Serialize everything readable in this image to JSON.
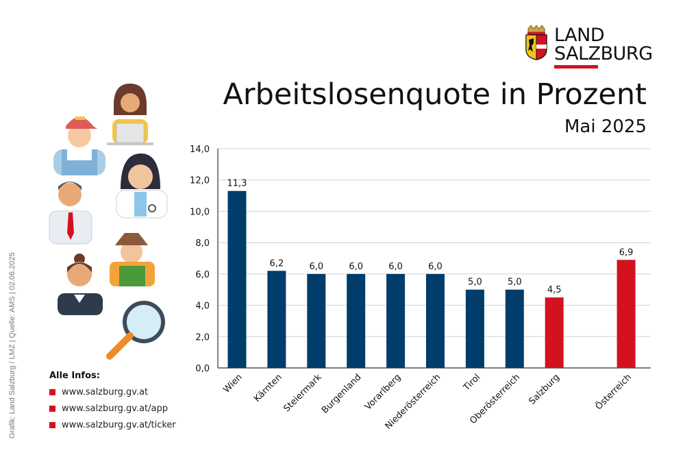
{
  "logo": {
    "line1": "LAND",
    "line2": "SALZBURG"
  },
  "credit": "Grafik: Land Salzburg / LMZ  |  Quelle: AMS  |  02.06.2025",
  "info": {
    "heading": "Alle Infos:",
    "links": [
      "www.salzburg.gv.at",
      "www.salzburg.gv.at/app",
      "www.salzburg.gv.at/ticker"
    ]
  },
  "colors": {
    "primary": "#003d6b",
    "accent": "#d3121f",
    "grid": "#d0d0d0"
  },
  "chart_data": {
    "type": "bar",
    "title": "Arbeitslosenquote in Prozent",
    "subtitle": "Mai 2025",
    "xlabel": "",
    "ylabel": "",
    "ylim": [
      0,
      14
    ],
    "yticks": [
      "0,0",
      "2,0",
      "4,0",
      "6,0",
      "8,0",
      "10,0",
      "12,0",
      "14,0"
    ],
    "grid": true,
    "categories": [
      "Wien",
      "Kärnten",
      "Steiermark",
      "Burgenland",
      "Vorarlberg",
      "Niederösterreich",
      "Tirol",
      "Oberösterreich",
      "Salzburg",
      "Österreich"
    ],
    "values": [
      11.3,
      6.2,
      6.0,
      6.0,
      6.0,
      6.0,
      5.0,
      5.0,
      4.5,
      6.9
    ],
    "value_labels": [
      "11,3",
      "6,2",
      "6,0",
      "6,0",
      "6,0",
      "6,0",
      "5,0",
      "5,0",
      "4,5",
      "6,9"
    ],
    "bar_colors": [
      "#003d6b",
      "#003d6b",
      "#003d6b",
      "#003d6b",
      "#003d6b",
      "#003d6b",
      "#003d6b",
      "#003d6b",
      "#d3121f",
      "#d3121f"
    ]
  }
}
